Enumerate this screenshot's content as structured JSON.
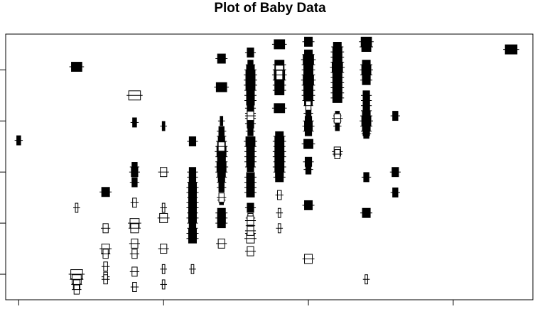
{
  "chart_data": {
    "type": "scatter",
    "title": "Plot of Baby Data",
    "xlabel": "",
    "ylabel": "",
    "grid": false,
    "legend": "none",
    "colors": {
      "filled": "#000000",
      "open": "#ffffff",
      "stroke": "#000000"
    },
    "series": [
      {
        "style": "filled",
        "points": [
          {
            "x": 0.0,
            "y": 0.62,
            "w": 0.15
          },
          {
            "x": 2.0,
            "y": 2.06,
            "w": 0.4
          },
          {
            "x": 3.0,
            "y": -0.39,
            "w": 0.3
          },
          {
            "x": 4.0,
            "y": 0.0,
            "w": 0.25
          },
          {
            "x": 4.0,
            "y": 0.97,
            "w": 0.15
          },
          {
            "x": 4.0,
            "y": -0.2,
            "w": 0.2
          },
          {
            "x": 4.0,
            "y": 0.1,
            "w": 0.2
          },
          {
            "x": 5.0,
            "y": 0.9,
            "w": 0.1
          },
          {
            "x": 6.0,
            "y": 0.6,
            "w": 0.25
          },
          {
            "x": 6.0,
            "y": 0.0,
            "w": 0.25
          },
          {
            "x": 6.0,
            "y": -0.1,
            "w": 0.25
          },
          {
            "x": 6.0,
            "y": -0.2,
            "w": 0.25
          },
          {
            "x": 6.0,
            "y": -0.3,
            "w": 0.3
          },
          {
            "x": 6.0,
            "y": -0.4,
            "w": 0.3
          },
          {
            "x": 6.0,
            "y": -0.5,
            "w": 0.25
          },
          {
            "x": 6.0,
            "y": -0.6,
            "w": 0.3
          },
          {
            "x": 6.0,
            "y": -0.7,
            "w": 0.3
          },
          {
            "x": 6.0,
            "y": -0.8,
            "w": 0.25
          },
          {
            "x": 6.0,
            "y": -0.9,
            "w": 0.3
          },
          {
            "x": 6.0,
            "y": -1.0,
            "w": 0.25
          },
          {
            "x": 6.0,
            "y": -1.1,
            "w": 0.25
          },
          {
            "x": 6.0,
            "y": -1.2,
            "w": 0.3
          },
          {
            "x": 6.0,
            "y": -1.3,
            "w": 0.3
          },
          {
            "x": 7.0,
            "y": 2.22,
            "w": 0.3
          },
          {
            "x": 7.0,
            "y": 1.66,
            "w": 0.4
          },
          {
            "x": 7.0,
            "y": 1.0,
            "w": 0.1
          },
          {
            "x": 7.0,
            "y": 0.8,
            "w": 0.2
          },
          {
            "x": 7.0,
            "y": 0.7,
            "w": 0.2
          },
          {
            "x": 7.0,
            "y": 0.6,
            "w": 0.25
          },
          {
            "x": 7.0,
            "y": 0.5,
            "w": 0.3
          },
          {
            "x": 7.0,
            "y": 0.4,
            "w": 0.35
          },
          {
            "x": 7.0,
            "y": 0.3,
            "w": 0.3
          },
          {
            "x": 7.0,
            "y": 0.2,
            "w": 0.3
          },
          {
            "x": 7.0,
            "y": 0.1,
            "w": 0.35
          },
          {
            "x": 7.0,
            "y": 0.0,
            "w": 0.3
          },
          {
            "x": 7.0,
            "y": -0.1,
            "w": 0.25
          },
          {
            "x": 7.0,
            "y": -0.2,
            "w": 0.2
          },
          {
            "x": 7.0,
            "y": -0.3,
            "w": 0.2
          },
          {
            "x": 7.0,
            "y": -0.55,
            "w": 0.15
          },
          {
            "x": 7.0,
            "y": -0.8,
            "w": 0.3
          },
          {
            "x": 7.0,
            "y": -0.9,
            "w": 0.3
          },
          {
            "x": 7.0,
            "y": -1.0,
            "w": 0.3
          },
          {
            "x": 8.0,
            "y": 2.34,
            "w": 0.25
          },
          {
            "x": 8.0,
            "y": 2.1,
            "w": 0.2
          },
          {
            "x": 8.0,
            "y": 2.0,
            "w": 0.3
          },
          {
            "x": 8.0,
            "y": 1.9,
            "w": 0.35
          },
          {
            "x": 8.0,
            "y": 1.8,
            "w": 0.35
          },
          {
            "x": 8.0,
            "y": 1.7,
            "w": 0.35
          },
          {
            "x": 8.0,
            "y": 1.6,
            "w": 0.3
          },
          {
            "x": 8.0,
            "y": 1.5,
            "w": 0.3
          },
          {
            "x": 8.0,
            "y": 1.4,
            "w": 0.3
          },
          {
            "x": 8.0,
            "y": 1.25,
            "w": 0.25
          },
          {
            "x": 8.0,
            "y": 1.15,
            "w": 0.25
          },
          {
            "x": 8.0,
            "y": 1.05,
            "w": 0.25
          },
          {
            "x": 8.0,
            "y": 0.95,
            "w": 0.25
          },
          {
            "x": 8.0,
            "y": 0.8,
            "w": 0.2
          },
          {
            "x": 8.0,
            "y": 0.6,
            "w": 0.35
          },
          {
            "x": 8.0,
            "y": 0.5,
            "w": 0.3
          },
          {
            "x": 8.0,
            "y": 0.4,
            "w": 0.3
          },
          {
            "x": 8.0,
            "y": 0.3,
            "w": 0.3
          },
          {
            "x": 8.0,
            "y": 0.2,
            "w": 0.3
          },
          {
            "x": 8.0,
            "y": 0.1,
            "w": 0.25
          },
          {
            "x": 8.0,
            "y": -0.1,
            "w": 0.3
          },
          {
            "x": 8.0,
            "y": -0.2,
            "w": 0.3
          },
          {
            "x": 8.0,
            "y": -0.3,
            "w": 0.3
          },
          {
            "x": 8.0,
            "y": -0.4,
            "w": 0.3
          },
          {
            "x": 8.0,
            "y": -0.7,
            "w": 0.25
          },
          {
            "x": 8.0,
            "y": -1.05,
            "w": 0.2
          },
          {
            "x": 8.0,
            "y": -1.2,
            "w": 0.25
          },
          {
            "x": 9.0,
            "y": 2.5,
            "w": 0.4
          },
          {
            "x": 9.0,
            "y": 2.1,
            "w": 0.35
          },
          {
            "x": 9.0,
            "y": 2.0,
            "w": 0.35
          },
          {
            "x": 9.0,
            "y": 1.9,
            "w": 0.4
          },
          {
            "x": 9.0,
            "y": 1.8,
            "w": 0.35
          },
          {
            "x": 9.0,
            "y": 1.7,
            "w": 0.35
          },
          {
            "x": 9.0,
            "y": 1.6,
            "w": 0.35
          },
          {
            "x": 9.0,
            "y": 1.25,
            "w": 0.4
          },
          {
            "x": 9.0,
            "y": 0.7,
            "w": 0.3
          },
          {
            "x": 9.0,
            "y": 0.6,
            "w": 0.35
          },
          {
            "x": 9.0,
            "y": 0.5,
            "w": 0.3
          },
          {
            "x": 9.0,
            "y": 0.4,
            "w": 0.35
          },
          {
            "x": 9.0,
            "y": 0.3,
            "w": 0.35
          },
          {
            "x": 9.0,
            "y": 0.2,
            "w": 0.3
          },
          {
            "x": 9.0,
            "y": 0.1,
            "w": 0.35
          },
          {
            "x": 9.0,
            "y": 0.0,
            "w": 0.3
          },
          {
            "x": 9.0,
            "y": -0.1,
            "w": 0.3
          },
          {
            "x": 10.0,
            "y": 2.55,
            "w": 0.3
          },
          {
            "x": 10.0,
            "y": 2.3,
            "w": 0.3
          },
          {
            "x": 10.0,
            "y": 2.2,
            "w": 0.4
          },
          {
            "x": 10.0,
            "y": 2.1,
            "w": 0.35
          },
          {
            "x": 10.0,
            "y": 2.0,
            "w": 0.35
          },
          {
            "x": 10.0,
            "y": 1.9,
            "w": 0.35
          },
          {
            "x": 10.0,
            "y": 1.8,
            "w": 0.4
          },
          {
            "x": 10.0,
            "y": 1.7,
            "w": 0.35
          },
          {
            "x": 10.0,
            "y": 1.6,
            "w": 0.35
          },
          {
            "x": 10.0,
            "y": 1.5,
            "w": 0.35
          },
          {
            "x": 10.0,
            "y": 1.4,
            "w": 0.3
          },
          {
            "x": 10.0,
            "y": 1.15,
            "w": 0.2
          },
          {
            "x": 10.0,
            "y": 1.0,
            "w": 0.25
          },
          {
            "x": 10.0,
            "y": 0.9,
            "w": 0.3
          },
          {
            "x": 10.0,
            "y": 0.8,
            "w": 0.25
          },
          {
            "x": 10.0,
            "y": 0.55,
            "w": 0.35
          },
          {
            "x": 10.0,
            "y": 0.2,
            "w": 0.25
          },
          {
            "x": 10.0,
            "y": 0.05,
            "w": 0.2
          },
          {
            "x": 10.0,
            "y": -0.65,
            "w": 0.3
          },
          {
            "x": 11.0,
            "y": 2.45,
            "w": 0.3
          },
          {
            "x": 11.0,
            "y": 2.35,
            "w": 0.35
          },
          {
            "x": 11.0,
            "y": 2.25,
            "w": 0.35
          },
          {
            "x": 11.0,
            "y": 2.15,
            "w": 0.35
          },
          {
            "x": 11.0,
            "y": 2.05,
            "w": 0.4
          },
          {
            "x": 11.0,
            "y": 1.95,
            "w": 0.35
          },
          {
            "x": 11.0,
            "y": 1.85,
            "w": 0.35
          },
          {
            "x": 11.0,
            "y": 1.75,
            "w": 0.35
          },
          {
            "x": 11.0,
            "y": 1.65,
            "w": 0.35
          },
          {
            "x": 11.0,
            "y": 1.55,
            "w": 0.35
          },
          {
            "x": 11.0,
            "y": 1.45,
            "w": 0.35
          },
          {
            "x": 11.0,
            "y": 1.1,
            "w": 0.15
          },
          {
            "x": 11.0,
            "y": 1.0,
            "w": 0.15
          },
          {
            "x": 11.0,
            "y": 0.9,
            "w": 0.15
          },
          {
            "x": 12.0,
            "y": 2.55,
            "w": 0.4
          },
          {
            "x": 12.0,
            "y": 2.45,
            "w": 0.35
          },
          {
            "x": 12.0,
            "y": 2.1,
            "w": 0.3
          },
          {
            "x": 12.0,
            "y": 2.0,
            "w": 0.35
          },
          {
            "x": 12.0,
            "y": 1.9,
            "w": 0.3
          },
          {
            "x": 12.0,
            "y": 1.8,
            "w": 0.3
          },
          {
            "x": 12.0,
            "y": 1.5,
            "w": 0.25
          },
          {
            "x": 12.0,
            "y": 1.4,
            "w": 0.25
          },
          {
            "x": 12.0,
            "y": 1.3,
            "w": 0.25
          },
          {
            "x": 12.0,
            "y": 1.2,
            "w": 0.25
          },
          {
            "x": 12.0,
            "y": 1.1,
            "w": 0.3
          },
          {
            "x": 12.0,
            "y": 1.0,
            "w": 0.35
          },
          {
            "x": 12.0,
            "y": 0.9,
            "w": 0.3
          },
          {
            "x": 12.0,
            "y": 0.8,
            "w": 0.25
          },
          {
            "x": 12.0,
            "y": 0.75,
            "w": 0.2
          },
          {
            "x": 12.0,
            "y": -0.1,
            "w": 0.2
          },
          {
            "x": 12.0,
            "y": -0.8,
            "w": 0.3
          },
          {
            "x": 13.0,
            "y": 1.1,
            "w": 0.2
          },
          {
            "x": 13.0,
            "y": 0.0,
            "w": 0.25
          },
          {
            "x": 13.0,
            "y": -0.4,
            "w": 0.2
          },
          {
            "x": 17.0,
            "y": 2.4,
            "w": 0.45
          }
        ]
      },
      {
        "style": "open",
        "points": [
          {
            "x": 2.0,
            "y": -0.7,
            "w": 0.1
          },
          {
            "x": 2.0,
            "y": -2.0,
            "w": 0.45
          },
          {
            "x": 2.0,
            "y": -2.1,
            "w": 0.35
          },
          {
            "x": 2.0,
            "y": -2.2,
            "w": 0.25
          },
          {
            "x": 2.0,
            "y": -2.3,
            "w": 0.2
          },
          {
            "x": 3.0,
            "y": -1.1,
            "w": 0.2
          },
          {
            "x": 3.0,
            "y": -1.5,
            "w": 0.3
          },
          {
            "x": 3.0,
            "y": -1.6,
            "w": 0.2
          },
          {
            "x": 3.0,
            "y": -1.85,
            "w": 0.15
          },
          {
            "x": 3.0,
            "y": -2.05,
            "w": 0.15
          },
          {
            "x": 3.0,
            "y": -2.1,
            "w": 0.15
          },
          {
            "x": 4.0,
            "y": 1.5,
            "w": 0.45
          },
          {
            "x": 4.0,
            "y": -0.6,
            "w": 0.15
          },
          {
            "x": 4.0,
            "y": -1.0,
            "w": 0.35
          },
          {
            "x": 4.0,
            "y": -1.1,
            "w": 0.3
          },
          {
            "x": 4.0,
            "y": -1.4,
            "w": 0.25
          },
          {
            "x": 4.0,
            "y": -1.6,
            "w": 0.2
          },
          {
            "x": 4.0,
            "y": -1.95,
            "w": 0.2
          },
          {
            "x": 4.0,
            "y": -2.25,
            "w": 0.15
          },
          {
            "x": 5.0,
            "y": 0.0,
            "w": 0.25
          },
          {
            "x": 5.0,
            "y": -0.7,
            "w": 0.1
          },
          {
            "x": 5.0,
            "y": -0.9,
            "w": 0.3
          },
          {
            "x": 5.0,
            "y": -1.5,
            "w": 0.25
          },
          {
            "x": 5.0,
            "y": -1.9,
            "w": 0.1
          },
          {
            "x": 5.0,
            "y": -2.2,
            "w": 0.1
          },
          {
            "x": 6.0,
            "y": -1.9,
            "w": 0.1
          },
          {
            "x": 7.0,
            "y": -0.5,
            "w": 0.2
          },
          {
            "x": 7.0,
            "y": -1.4,
            "w": 0.25
          },
          {
            "x": 7.0,
            "y": 0.5,
            "w": 0.25
          },
          {
            "x": 8.0,
            "y": 1.1,
            "w": 0.25
          },
          {
            "x": 8.0,
            "y": -1.3,
            "w": 0.3
          },
          {
            "x": 8.0,
            "y": -1.15,
            "w": 0.25
          },
          {
            "x": 8.0,
            "y": -0.9,
            "w": 0.2
          },
          {
            "x": 8.0,
            "y": -1.55,
            "w": 0.25
          },
          {
            "x": 8.0,
            "y": -0.95,
            "w": 0.25
          },
          {
            "x": 9.0,
            "y": 2.0,
            "w": 0.3
          },
          {
            "x": 9.0,
            "y": 1.9,
            "w": 0.25
          },
          {
            "x": 9.0,
            "y": -0.45,
            "w": 0.15
          },
          {
            "x": 9.0,
            "y": -0.8,
            "w": 0.1
          },
          {
            "x": 9.0,
            "y": -1.1,
            "w": 0.1
          },
          {
            "x": 10.0,
            "y": 1.3,
            "w": 0.2
          },
          {
            "x": 10.0,
            "y": -1.7,
            "w": 0.3
          },
          {
            "x": 11.0,
            "y": 1.05,
            "w": 0.25
          },
          {
            "x": 11.0,
            "y": 0.4,
            "w": 0.25
          },
          {
            "x": 11.0,
            "y": 0.35,
            "w": 0.2
          },
          {
            "x": 12.0,
            "y": -2.1,
            "w": 0.1
          }
        ]
      }
    ],
    "x_axis": {
      "range": [
        -0.45,
        17.75
      ],
      "ticks": [
        0,
        5,
        10,
        15
      ],
      "tick_labels": [
        "",
        "",
        "",
        ""
      ]
    },
    "y_axis": {
      "range": [
        -2.5,
        2.7
      ],
      "ticks": [
        -2,
        -1,
        0,
        1,
        2
      ],
      "tick_labels": [
        "",
        "",
        "",
        "",
        ""
      ]
    },
    "point_half_height": 0.1
  }
}
